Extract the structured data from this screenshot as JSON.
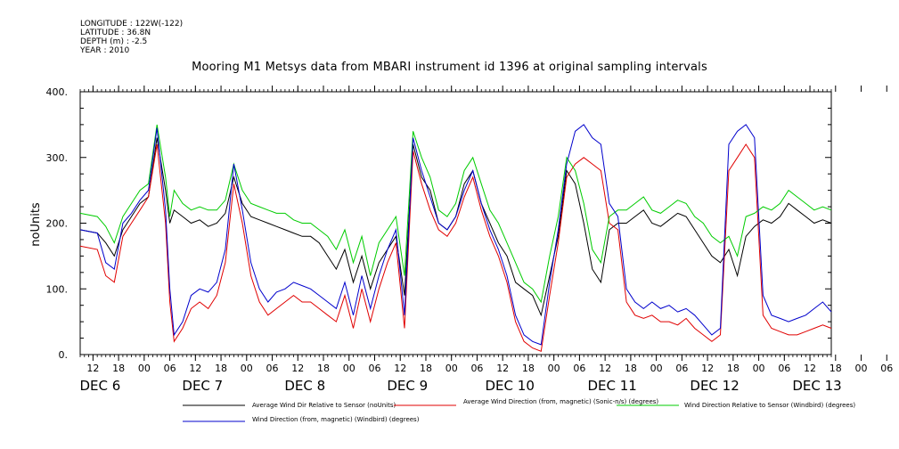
{
  "meta": {
    "longitude": "LONGITUDE : 122W(-122)",
    "latitude": "LATITUDE : 36.8N",
    "depth": "DEPTH (m) : -2.5",
    "year": "YEAR : 2010"
  },
  "title": "Mooring M1 Metsys data from MBARI instrument id 1396 at original sampling intervals",
  "colors": {
    "black": "#000000",
    "red": "#e00000",
    "green": "#00cc00",
    "blue": "#0000cc"
  },
  "chart_data": {
    "type": "line",
    "title": "Mooring M1 Metsys data from MBARI instrument id 1396 at original sampling intervals",
    "ylabel": "noUnits",
    "ylim": [
      0,
      400
    ],
    "yticks": [
      "0.",
      "100.",
      "200.",
      "300.",
      "400."
    ],
    "xlim": [
      0,
      176
    ],
    "hour_labels": [
      "12",
      "18",
      "00",
      "06",
      "12",
      "18",
      "00",
      "06",
      "12",
      "18",
      "00",
      "06",
      "12",
      "18",
      "00",
      "06",
      "12",
      "18",
      "00",
      "06",
      "12",
      "18",
      "00",
      "06",
      "12",
      "18",
      "00",
      "06",
      "12",
      "18",
      "00",
      "06"
    ],
    "day_labels": [
      "DEC  6",
      "DEC  7",
      "DEC  8",
      "DEC  9",
      "DEC 10",
      "DEC 11",
      "DEC 12",
      "DEC 13"
    ],
    "legend": [
      {
        "name": "Average Wind Dir Relative to Sensor (noUnits)",
        "color": "#000000"
      },
      {
        "name": "Average Wind Direction (from, magnetic) (Sonic-n/s) (degrees)",
        "color": "#e00000"
      },
      {
        "name": "Wind Direction Relative to Sensor (Windbird) (degrees)",
        "color": "#00cc00"
      },
      {
        "name": "Wind Direction (from, magnetic) (Windbird) (degrees)",
        "color": "#0000cc"
      }
    ],
    "series": [
      {
        "name": "Average Wind Dir Relative to Sensor (noUnits)",
        "color": "#000000",
        "x": [
          0,
          4,
          6,
          8,
          10,
          12,
          14,
          16,
          18,
          20,
          21,
          22,
          24,
          26,
          28,
          30,
          32,
          34,
          36,
          38,
          40,
          42,
          44,
          46,
          48,
          50,
          52,
          54,
          56,
          58,
          60,
          62,
          64,
          66,
          68,
          70,
          72,
          74,
          76,
          78,
          80,
          82,
          84,
          86,
          88,
          90,
          92,
          94,
          96,
          98,
          100,
          102,
          104,
          106,
          108,
          110,
          112,
          114,
          116,
          118,
          120,
          122,
          124,
          126,
          128,
          130,
          132,
          134,
          136,
          138,
          140,
          142,
          144,
          146,
          148,
          150,
          152,
          154,
          156,
          158,
          160,
          162,
          164,
          166,
          168,
          170,
          172,
          174,
          176
        ],
        "y": [
          190,
          185,
          170,
          150,
          190,
          210,
          230,
          240,
          330,
          250,
          200,
          220,
          210,
          200,
          205,
          195,
          200,
          215,
          270,
          230,
          210,
          205,
          200,
          195,
          190,
          185,
          180,
          180,
          170,
          150,
          130,
          160,
          110,
          150,
          100,
          140,
          160,
          180,
          90,
          320,
          270,
          250,
          200,
          190,
          210,
          260,
          280,
          230,
          200,
          170,
          150,
          110,
          100,
          90,
          60,
          120,
          180,
          280,
          260,
          200,
          130,
          110,
          190,
          200,
          200,
          210,
          220,
          200,
          195,
          205,
          215,
          210,
          190,
          170,
          150,
          140,
          160,
          120,
          180,
          195,
          205,
          200,
          210,
          230,
          220,
          210,
          200,
          205,
          200
        ]
      },
      {
        "name": "Average Wind Direction (from, magnetic) (Sonic-n/s) (degrees)",
        "color": "#e00000",
        "x": [
          0,
          4,
          6,
          8,
          10,
          12,
          14,
          16,
          18,
          20,
          21,
          22,
          24,
          26,
          28,
          30,
          32,
          34,
          36,
          38,
          40,
          42,
          44,
          46,
          48,
          50,
          52,
          54,
          56,
          58,
          60,
          62,
          64,
          66,
          68,
          70,
          72,
          74,
          76,
          78,
          80,
          82,
          84,
          86,
          88,
          90,
          92,
          94,
          96,
          98,
          100,
          102,
          104,
          106,
          108,
          110,
          112,
          114,
          116,
          118,
          120,
          122,
          124,
          126,
          128,
          130,
          132,
          134,
          136,
          138,
          140,
          142,
          144,
          146,
          148,
          150,
          152,
          154,
          156,
          158,
          160,
          162,
          164,
          166,
          168,
          170,
          172,
          174,
          176
        ],
        "y": [
          165,
          160,
          120,
          110,
          180,
          200,
          220,
          240,
          320,
          200,
          80,
          20,
          40,
          70,
          80,
          70,
          90,
          140,
          260,
          200,
          120,
          80,
          60,
          70,
          80,
          90,
          80,
          80,
          70,
          60,
          50,
          90,
          40,
          100,
          50,
          100,
          140,
          170,
          40,
          310,
          260,
          220,
          190,
          180,
          200,
          240,
          270,
          220,
          180,
          150,
          110,
          50,
          20,
          10,
          5,
          90,
          170,
          270,
          290,
          300,
          290,
          280,
          200,
          190,
          80,
          60,
          55,
          60,
          50,
          50,
          45,
          55,
          40,
          30,
          20,
          30,
          280,
          300,
          320,
          300,
          60,
          40,
          35,
          30,
          30,
          35,
          40,
          45,
          40
        ]
      },
      {
        "name": "Wind Direction Relative to Sensor (Windbird) (degrees)",
        "color": "#00cc00",
        "x": [
          0,
          4,
          6,
          8,
          10,
          12,
          14,
          16,
          18,
          20,
          21,
          22,
          24,
          26,
          28,
          30,
          32,
          34,
          36,
          38,
          40,
          42,
          44,
          46,
          48,
          50,
          52,
          54,
          56,
          58,
          60,
          62,
          64,
          66,
          68,
          70,
          72,
          74,
          76,
          78,
          80,
          82,
          84,
          86,
          88,
          90,
          92,
          94,
          96,
          98,
          100,
          102,
          104,
          106,
          108,
          110,
          112,
          114,
          116,
          118,
          120,
          122,
          124,
          126,
          128,
          130,
          132,
          134,
          136,
          138,
          140,
          142,
          144,
          146,
          148,
          150,
          152,
          154,
          156,
          158,
          160,
          162,
          164,
          166,
          168,
          170,
          172,
          174,
          176
        ],
        "y": [
          215,
          210,
          195,
          170,
          210,
          230,
          250,
          260,
          350,
          270,
          210,
          250,
          230,
          220,
          225,
          220,
          220,
          235,
          290,
          250,
          230,
          225,
          220,
          215,
          215,
          205,
          200,
          200,
          190,
          180,
          160,
          190,
          140,
          180,
          120,
          170,
          190,
          210,
          120,
          340,
          300,
          270,
          220,
          210,
          230,
          280,
          300,
          260,
          220,
          200,
          170,
          140,
          110,
          100,
          80,
          150,
          210,
          300,
          280,
          230,
          160,
          140,
          210,
          220,
          220,
          230,
          240,
          220,
          215,
          225,
          235,
          230,
          210,
          200,
          180,
          170,
          180,
          150,
          210,
          215,
          225,
          220,
          230,
          250,
          240,
          230,
          220,
          225,
          220
        ]
      },
      {
        "name": "Wind Direction (from, magnetic) (Windbird) (degrees)",
        "color": "#0000cc",
        "x": [
          0,
          4,
          6,
          8,
          10,
          12,
          14,
          16,
          18,
          20,
          21,
          22,
          24,
          26,
          28,
          30,
          32,
          34,
          36,
          38,
          40,
          42,
          44,
          46,
          48,
          50,
          52,
          54,
          56,
          58,
          60,
          62,
          64,
          66,
          68,
          70,
          72,
          74,
          76,
          78,
          80,
          82,
          84,
          86,
          88,
          90,
          92,
          94,
          96,
          98,
          100,
          102,
          104,
          106,
          108,
          110,
          112,
          114,
          116,
          118,
          120,
          122,
          124,
          126,
          128,
          130,
          132,
          134,
          136,
          138,
          140,
          142,
          144,
          146,
          148,
          150,
          152,
          154,
          156,
          158,
          160,
          162,
          164,
          166,
          168,
          170,
          172,
          174,
          176
        ],
        "y": [
          190,
          185,
          140,
          130,
          200,
          215,
          235,
          250,
          345,
          220,
          100,
          30,
          50,
          90,
          100,
          95,
          110,
          160,
          290,
          220,
          140,
          100,
          80,
          95,
          100,
          110,
          105,
          100,
          90,
          80,
          70,
          110,
          60,
          120,
          70,
          120,
          160,
          190,
          60,
          330,
          280,
          240,
          200,
          190,
          210,
          250,
          280,
          230,
          190,
          160,
          120,
          60,
          30,
          20,
          15,
          110,
          190,
          290,
          340,
          350,
          330,
          320,
          230,
          210,
          100,
          80,
          70,
          80,
          70,
          75,
          65,
          70,
          60,
          45,
          30,
          40,
          320,
          340,
          350,
          330,
          90,
          60,
          55,
          50,
          55,
          60,
          70,
          80,
          65
        ]
      }
    ]
  }
}
